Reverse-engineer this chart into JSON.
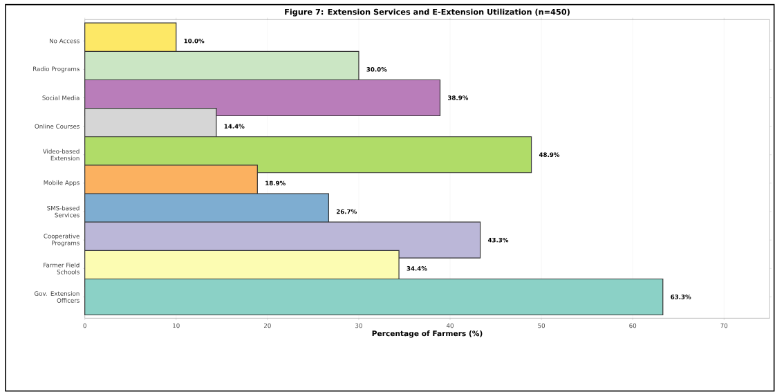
{
  "chart_data": {
    "type": "bar",
    "orientation": "horizontal",
    "title": "Figure 7: Extension Services and E-Extension Utilization (n=450)",
    "xlabel": "Percentage of Farmers (%)",
    "categories": [
      "No Access",
      "Radio Programs",
      "Social Media",
      "Online Courses",
      "Video-based Extension",
      "Mobile Apps",
      "SMS-based Services",
      "Cooperative Programs",
      "Farmer Field Schools",
      "Gov. Extension Officers"
    ],
    "values": [
      10.0,
      30.0,
      38.9,
      14.4,
      48.9,
      18.9,
      26.7,
      43.3,
      34.4,
      63.3
    ],
    "colors": [
      "#fde866",
      "#cbe6c4",
      "#b97dba",
      "#d6d6d6",
      "#b0dc68",
      "#fbb160",
      "#7eadd1",
      "#bbb7d8",
      "#fcfcb2",
      "#8bd1c6"
    ],
    "value_labels": [
      "10.0%",
      "30.0%",
      "38.9%",
      "14.4%",
      "48.9%",
      "18.9%",
      "26.7%",
      "43.3%",
      "34.4%",
      "63.3%"
    ],
    "xlim": [
      0,
      75
    ],
    "xticks": [
      0,
      10,
      20,
      30,
      40,
      50,
      60,
      70
    ],
    "grid": "x"
  }
}
